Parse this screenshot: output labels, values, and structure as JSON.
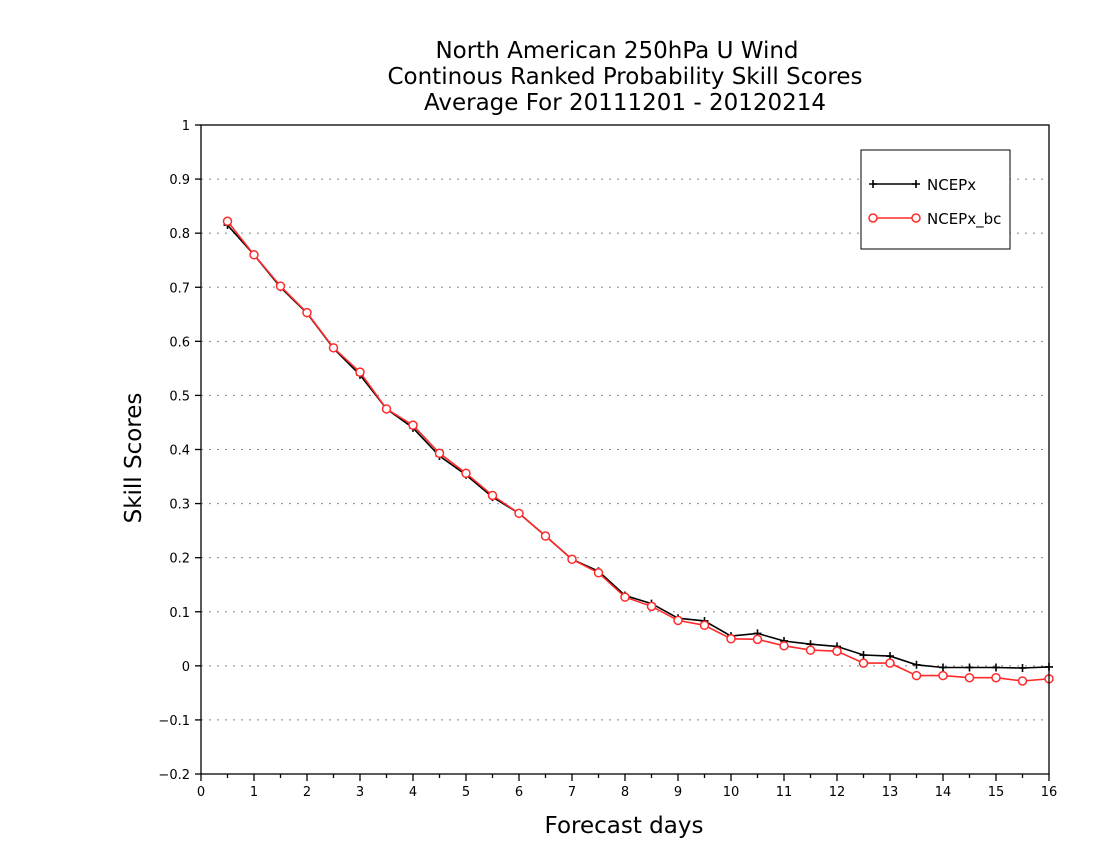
{
  "chart_data": {
    "type": "line",
    "title_lines": [
      "North American 250hPa U Wind",
      "Continous Ranked Probability Skill Scores",
      "Average For 20111201 - 20120214"
    ],
    "xlabel": "Forecast days",
    "ylabel": "Skill Scores",
    "xlim": [
      0,
      16
    ],
    "ylim": [
      -0.2,
      1
    ],
    "xticks": [
      0,
      1,
      2,
      3,
      4,
      5,
      6,
      7,
      8,
      9,
      10,
      11,
      12,
      13,
      14,
      15,
      16
    ],
    "xtick_labels": [
      "0",
      "1",
      "2",
      "3",
      "4",
      "5",
      "6",
      "7",
      "8",
      "9",
      "10",
      "11",
      "12",
      "13",
      "14",
      "15",
      "16"
    ],
    "yticks": [
      -0.2,
      -0.1,
      0,
      0.1,
      0.2,
      0.3,
      0.4,
      0.5,
      0.6,
      0.7,
      0.8,
      0.9,
      1
    ],
    "ytick_labels": [
      "−0.2",
      "−0.1",
      "0",
      "0.1",
      "0.2",
      "0.3",
      "0.4",
      "0.5",
      "0.6",
      "0.7",
      "0.8",
      "0.9",
      "1"
    ],
    "grid": "horizontal dotted",
    "legend_position": "top-right",
    "x": [
      0.5,
      1,
      1.5,
      2,
      2.5,
      3,
      3.5,
      4,
      4.5,
      5,
      5.5,
      6,
      6.5,
      7,
      7.5,
      8,
      8.5,
      9,
      9.5,
      10,
      10.5,
      11,
      11.5,
      12,
      12.5,
      13,
      13.5,
      14,
      14.5,
      15,
      15.5,
      16
    ],
    "series": [
      {
        "name": "NCEPx",
        "color": "#000000",
        "marker": "plus",
        "values": [
          0.815,
          0.76,
          0.7,
          0.652,
          0.587,
          0.538,
          0.475,
          0.44,
          0.388,
          0.353,
          0.312,
          0.282,
          0.24,
          0.197,
          0.175,
          0.13,
          0.115,
          0.088,
          0.083,
          0.055,
          0.06,
          0.046,
          0.04,
          0.036,
          0.02,
          0.018,
          0.002,
          -0.003,
          -0.003,
          -0.003,
          -0.004,
          -0.002
        ]
      },
      {
        "name": "NCEPx_bc",
        "color": "#ff2a2a",
        "marker": "circle",
        "values": [
          0.822,
          0.76,
          0.702,
          0.653,
          0.588,
          0.543,
          0.475,
          0.445,
          0.393,
          0.356,
          0.315,
          0.282,
          0.24,
          0.197,
          0.172,
          0.127,
          0.11,
          0.084,
          0.075,
          0.05,
          0.049,
          0.037,
          0.029,
          0.027,
          0.005,
          0.005,
          -0.018,
          -0.018,
          -0.022,
          -0.022,
          -0.028,
          -0.024
        ]
      }
    ]
  }
}
